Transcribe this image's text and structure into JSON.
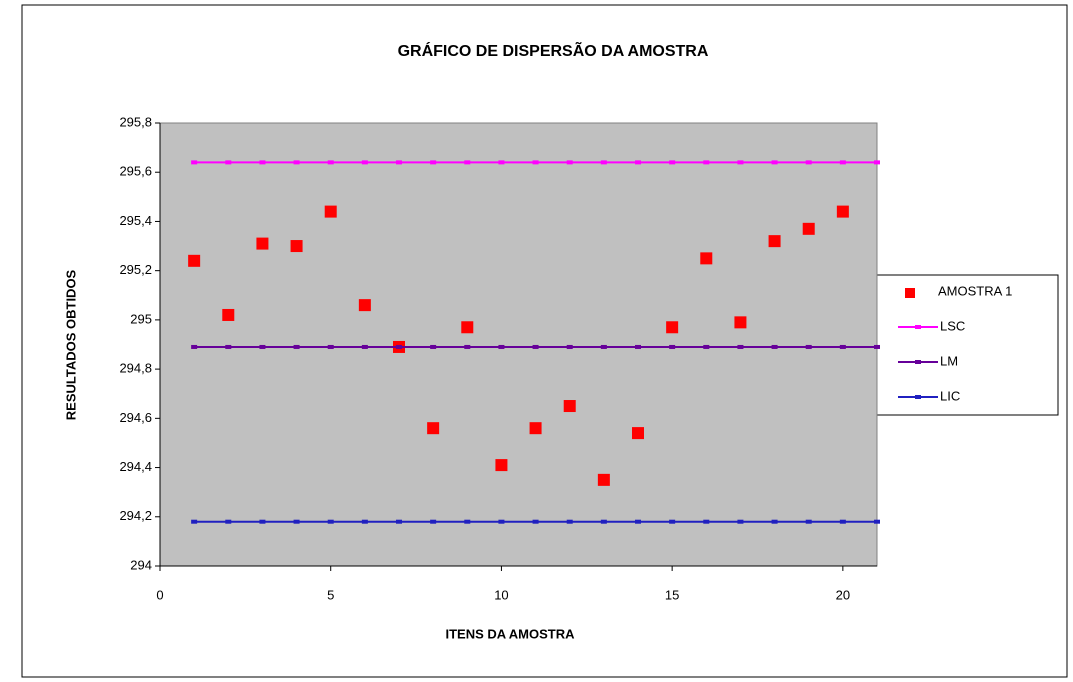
{
  "chart_data": {
    "type": "scatter",
    "title": "GRÁFICO DE DISPERSÃO DA AMOSTRA",
    "xlabel": "ITENS DA AMOSTRA",
    "ylabel": "RESULTADOS OBTIDOS",
    "xlim": [
      0,
      21
    ],
    "xticks": [
      0,
      5,
      10,
      15,
      20
    ],
    "ylim": [
      294,
      295.8
    ],
    "yticks": [
      294,
      {
        "value": 294.2,
        "label": "294,2"
      },
      {
        "value": 294.4,
        "label": "294,4"
      },
      {
        "value": 294.6,
        "label": "294,6"
      },
      {
        "value": 294.8,
        "label": "294,8"
      },
      295,
      {
        "value": 295.2,
        "label": "295,2"
      },
      {
        "value": 295.4,
        "label": "295,4"
      },
      {
        "value": 295.6,
        "label": "295,6"
      },
      {
        "value": 295.8,
        "label": "295,8"
      }
    ],
    "legend": "right",
    "series": [
      {
        "name": "AMOSTRA 1",
        "color": "#ff0000",
        "mode": "markers",
        "x": [
          1,
          2,
          3,
          4,
          5,
          6,
          7,
          8,
          9,
          10,
          11,
          12,
          13,
          14,
          15,
          16,
          17,
          18,
          19,
          20
        ],
        "values": [
          295.24,
          295.02,
          295.31,
          295.3,
          295.44,
          295.06,
          294.89,
          294.56,
          294.97,
          294.41,
          294.56,
          294.65,
          294.35,
          294.54,
          294.97,
          295.25,
          294.99,
          295.32,
          295.37,
          295.44
        ]
      },
      {
        "name": "LSC",
        "color": "#ff00ff",
        "mode": "lines",
        "x": [
          1,
          2,
          3,
          4,
          5,
          6,
          7,
          8,
          9,
          10,
          11,
          12,
          13,
          14,
          15,
          16,
          17,
          18,
          19,
          20,
          21
        ],
        "values": [
          295.64,
          295.64,
          295.64,
          295.64,
          295.64,
          295.64,
          295.64,
          295.64,
          295.64,
          295.64,
          295.64,
          295.64,
          295.64,
          295.64,
          295.64,
          295.64,
          295.64,
          295.64,
          295.64,
          295.64,
          295.64
        ]
      },
      {
        "name": "LM",
        "color": "#660099",
        "mode": "lines",
        "x": [
          1,
          2,
          3,
          4,
          5,
          6,
          7,
          8,
          9,
          10,
          11,
          12,
          13,
          14,
          15,
          16,
          17,
          18,
          19,
          20,
          21
        ],
        "values": [
          294.89,
          294.89,
          294.89,
          294.89,
          294.89,
          294.89,
          294.89,
          294.89,
          294.89,
          294.89,
          294.89,
          294.89,
          294.89,
          294.89,
          294.89,
          294.89,
          294.89,
          294.89,
          294.89,
          294.89,
          294.89
        ]
      },
      {
        "name": "LIC",
        "color": "#2020c0",
        "mode": "lines",
        "x": [
          1,
          2,
          3,
          4,
          5,
          6,
          7,
          8,
          9,
          10,
          11,
          12,
          13,
          14,
          15,
          16,
          17,
          18,
          19,
          20,
          21
        ],
        "values": [
          294.18,
          294.18,
          294.18,
          294.18,
          294.18,
          294.18,
          294.18,
          294.18,
          294.18,
          294.18,
          294.18,
          294.18,
          294.18,
          294.18,
          294.18,
          294.18,
          294.18,
          294.18,
          294.18,
          294.18,
          294.18
        ]
      }
    ]
  }
}
